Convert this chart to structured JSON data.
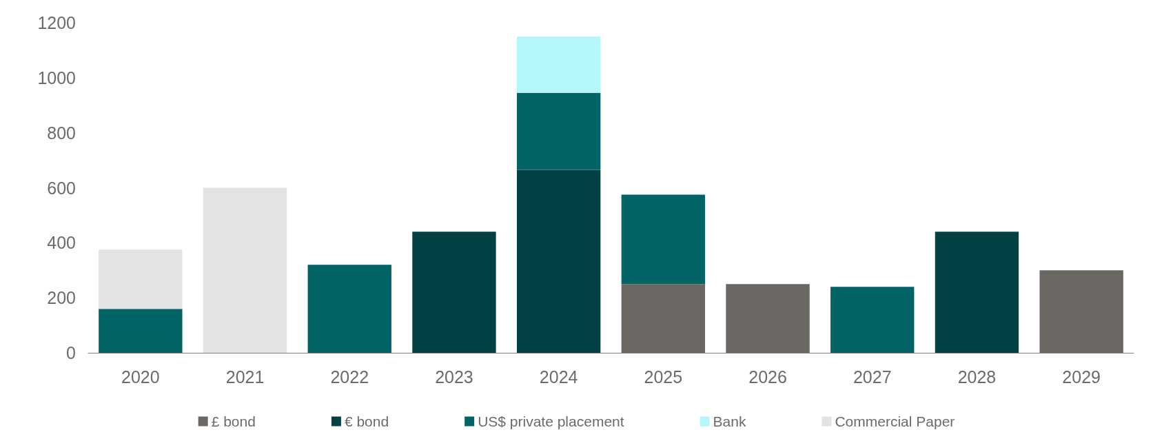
{
  "chart_data": {
    "type": "bar",
    "stacked": true,
    "categories": [
      "2020",
      "2021",
      "2022",
      "2023",
      "2024",
      "2025",
      "2026",
      "2027",
      "2028",
      "2029"
    ],
    "series": [
      {
        "name": "£ bond",
        "color": "#6b6763",
        "values": [
          0,
          0,
          0,
          0,
          0,
          250,
          250,
          0,
          0,
          300
        ]
      },
      {
        "name": "€ bond",
        "color": "#034144",
        "values": [
          0,
          0,
          0,
          440,
          665,
          0,
          0,
          0,
          440,
          0
        ]
      },
      {
        "name": "US$ private placement",
        "color": "#026466",
        "values": [
          160,
          0,
          320,
          0,
          280,
          325,
          0,
          240,
          0,
          0
        ]
      },
      {
        "name": "Bank",
        "color": "#b3f7fb",
        "values": [
          0,
          0,
          0,
          0,
          205,
          0,
          0,
          0,
          0,
          0
        ]
      },
      {
        "name": "Commercial Paper",
        "color": "#e4e2e4",
        "values": [
          215,
          600,
          0,
          0,
          0,
          0,
          0,
          0,
          0,
          0
        ]
      }
    ],
    "ylim": [
      0,
      1200
    ],
    "yticks": [
      0,
      200,
      400,
      600,
      800,
      1000,
      1200
    ],
    "grid": false,
    "legend": "bottom"
  }
}
